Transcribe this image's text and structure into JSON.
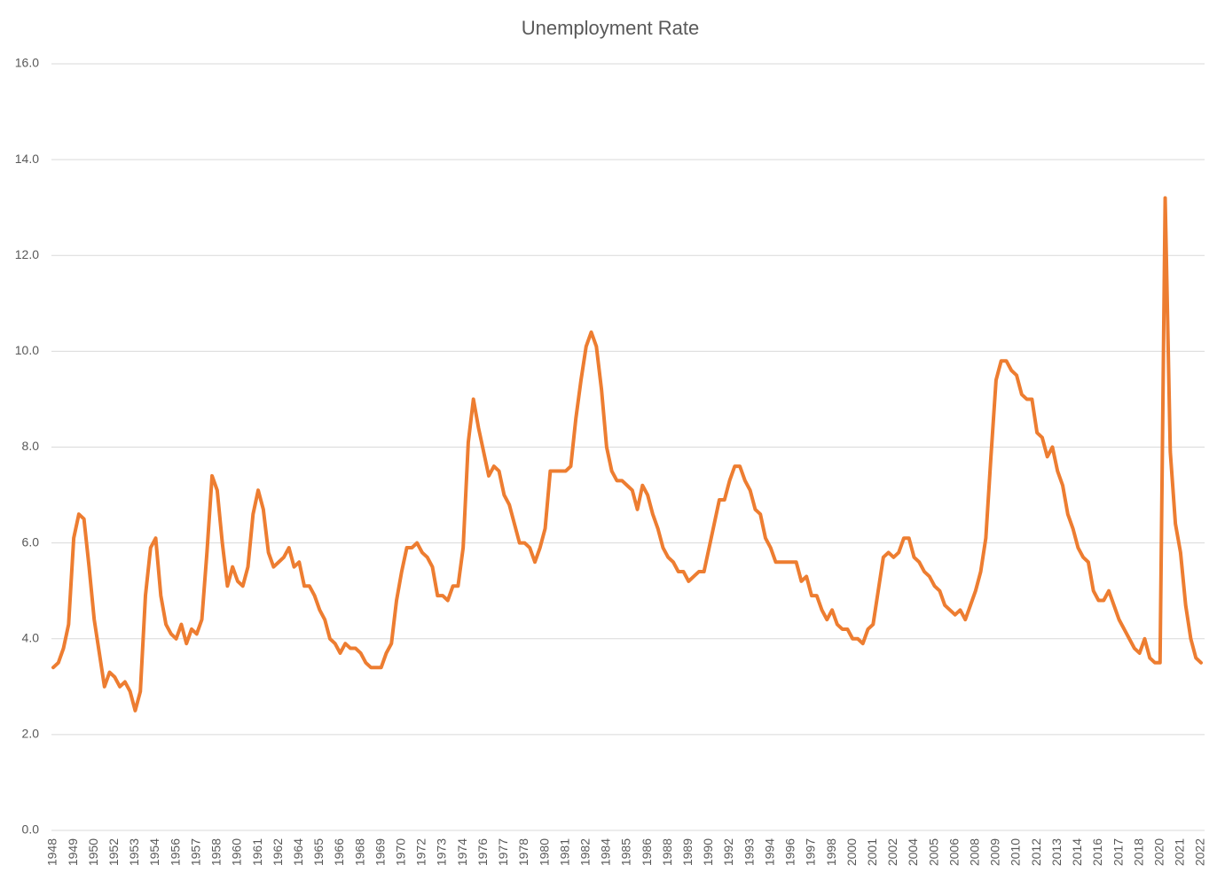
{
  "chart_data": {
    "type": "line",
    "title": "Unemployment Rate",
    "categories": [
      "1948",
      null,
      null,
      null,
      "1949",
      null,
      null,
      null,
      "1950",
      null,
      null,
      null,
      "1952",
      null,
      null,
      null,
      "1953",
      null,
      null,
      null,
      "1954",
      null,
      null,
      null,
      "1956",
      null,
      null,
      null,
      "1957",
      null,
      null,
      null,
      "1958",
      null,
      null,
      null,
      "1960",
      null,
      null,
      null,
      "1961",
      null,
      null,
      null,
      "1962",
      null,
      null,
      null,
      "1964",
      null,
      null,
      null,
      "1965",
      null,
      null,
      null,
      "1966",
      null,
      null,
      null,
      "1968",
      null,
      null,
      null,
      "1969",
      null,
      null,
      null,
      "1970",
      null,
      null,
      null,
      "1972",
      null,
      null,
      null,
      "1973",
      null,
      null,
      null,
      "1974",
      null,
      null,
      null,
      "1976",
      null,
      null,
      null,
      "1977",
      null,
      null,
      null,
      "1978",
      null,
      null,
      null,
      "1980",
      null,
      null,
      null,
      "1981",
      null,
      null,
      null,
      "1982",
      null,
      null,
      null,
      "1984",
      null,
      null,
      null,
      "1985",
      null,
      null,
      null,
      "1986",
      null,
      null,
      null,
      "1988",
      null,
      null,
      null,
      "1989",
      null,
      null,
      null,
      "1990",
      null,
      null,
      null,
      "1992",
      null,
      null,
      null,
      "1993",
      null,
      null,
      null,
      "1994",
      null,
      null,
      null,
      "1996",
      null,
      null,
      null,
      "1997",
      null,
      null,
      null,
      "1998",
      null,
      null,
      null,
      "2000",
      null,
      null,
      null,
      "2001",
      null,
      null,
      null,
      "2002",
      null,
      null,
      null,
      "2004",
      null,
      null,
      null,
      "2005",
      null,
      null,
      null,
      "2006",
      null,
      null,
      null,
      "2008",
      null,
      null,
      null,
      "2009",
      null,
      null,
      null,
      "2010",
      null,
      null,
      null,
      "2012",
      null,
      null,
      null,
      "2013",
      null,
      null,
      null,
      "2014",
      null,
      null,
      null,
      "2016",
      null,
      null,
      null,
      "2017",
      null,
      null,
      null,
      "2018",
      null,
      null,
      null,
      "2020",
      null,
      null,
      null,
      "2021",
      null,
      null,
      null,
      "2022"
    ],
    "values": [
      3.4,
      3.5,
      3.8,
      4.3,
      6.1,
      6.6,
      6.5,
      5.5,
      4.4,
      3.7,
      3.0,
      3.3,
      3.2,
      3.0,
      3.1,
      2.9,
      2.5,
      2.9,
      4.9,
      5.9,
      6.1,
      4.9,
      4.3,
      4.1,
      4.0,
      4.3,
      3.9,
      4.2,
      4.1,
      4.4,
      5.8,
      7.4,
      7.1,
      6.0,
      5.1,
      5.5,
      5.2,
      5.1,
      5.5,
      6.6,
      7.1,
      6.7,
      5.8,
      5.5,
      5.6,
      5.7,
      5.9,
      5.5,
      5.6,
      5.1,
      5.1,
      4.9,
      4.6,
      4.4,
      4.0,
      3.9,
      3.7,
      3.9,
      3.8,
      3.8,
      3.7,
      3.5,
      3.4,
      3.4,
      3.4,
      3.7,
      3.9,
      4.8,
      5.4,
      5.9,
      5.9,
      6.0,
      5.8,
      5.7,
      5.5,
      4.9,
      4.9,
      4.8,
      5.1,
      5.1,
      5.9,
      8.1,
      9.0,
      8.4,
      7.9,
      7.4,
      7.6,
      7.5,
      7.0,
      6.8,
      6.4,
      6.0,
      6.0,
      5.9,
      5.6,
      5.9,
      6.3,
      7.5,
      7.5,
      7.5,
      7.5,
      7.6,
      8.6,
      9.4,
      10.1,
      10.4,
      10.1,
      9.2,
      8.0,
      7.5,
      7.3,
      7.3,
      7.2,
      7.1,
      6.7,
      7.2,
      7.0,
      6.6,
      6.3,
      5.9,
      5.7,
      5.6,
      5.4,
      5.4,
      5.2,
      5.3,
      5.4,
      5.4,
      5.9,
      6.4,
      6.9,
      6.9,
      7.3,
      7.6,
      7.6,
      7.3,
      7.1,
      6.7,
      6.6,
      6.1,
      5.9,
      5.6,
      5.6,
      5.6,
      5.6,
      5.6,
      5.2,
      5.3,
      4.9,
      4.9,
      4.6,
      4.4,
      4.6,
      4.3,
      4.2,
      4.2,
      4.0,
      4.0,
      3.9,
      4.2,
      4.3,
      5.0,
      5.7,
      5.8,
      5.7,
      5.8,
      6.1,
      6.1,
      5.7,
      5.6,
      5.4,
      5.3,
      5.1,
      5.0,
      4.7,
      4.6,
      4.5,
      4.6,
      4.4,
      4.7,
      5.0,
      5.4,
      6.1,
      7.8,
      9.4,
      9.8,
      9.8,
      9.6,
      9.5,
      9.1,
      9.0,
      9.0,
      8.3,
      8.2,
      7.8,
      8.0,
      7.5,
      7.2,
      6.6,
      6.3,
      5.9,
      5.7,
      5.6,
      5.0,
      4.8,
      4.8,
      5.0,
      4.7,
      4.4,
      4.2,
      4.0,
      3.8,
      3.7,
      4.0,
      3.6,
      3.5,
      3.5,
      13.2,
      7.9,
      6.4,
      5.8,
      4.7,
      4.0,
      3.6,
      3.5
    ],
    "color": "#ed7d31",
    "ylim": [
      0,
      16
    ],
    "yticks": [
      {
        "value": 0,
        "label": "0.0"
      },
      {
        "value": 2,
        "label": "2.0"
      },
      {
        "value": 4,
        "label": "4.0"
      },
      {
        "value": 6,
        "label": "6.0"
      },
      {
        "value": 8,
        "label": "8.0"
      },
      {
        "value": 10,
        "label": "10.0"
      },
      {
        "value": 12,
        "label": "12.0"
      },
      {
        "value": 14,
        "label": "14.0"
      },
      {
        "value": 16,
        "label": "16.0"
      }
    ],
    "grid": true
  }
}
